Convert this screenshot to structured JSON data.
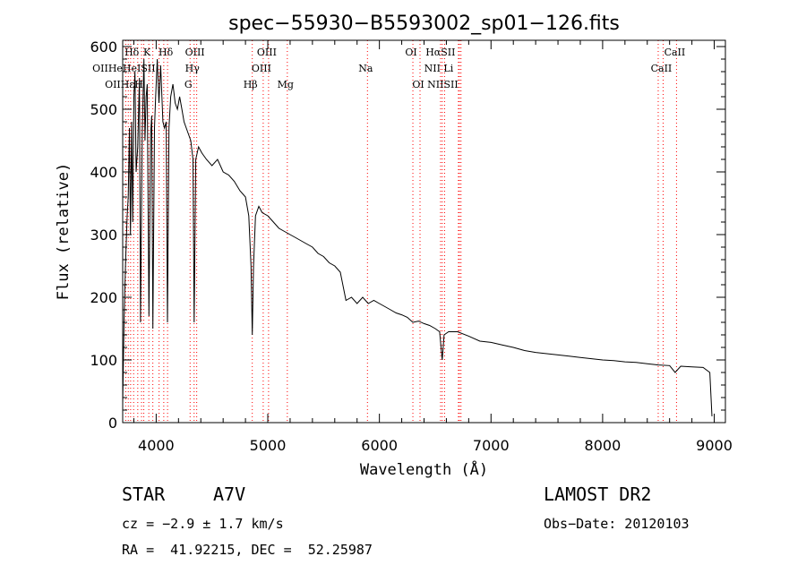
{
  "chart_data": {
    "type": "line",
    "title": "spec−55930−B5593002_sp01−126.fits",
    "xlabel": "Wavelength (Å)",
    "ylabel": "Flux (relative)",
    "xlim": [
      3700,
      9100
    ],
    "ylim": [
      0,
      610
    ],
    "x_ticks": [
      4000,
      5000,
      6000,
      7000,
      8000,
      9000
    ],
    "y_ticks": [
      0,
      100,
      200,
      300,
      400,
      500,
      600
    ],
    "grid": false,
    "series": [
      {
        "name": "spectrum",
        "color": "#000000",
        "points": [
          [
            3700,
            30
          ],
          [
            3712,
            160
          ],
          [
            3725,
            250
          ],
          [
            3740,
            330
          ],
          [
            3750,
            360
          ],
          [
            3760,
            470
          ],
          [
            3770,
            300
          ],
          [
            3780,
            480
          ],
          [
            3790,
            320
          ],
          [
            3800,
            520
          ],
          [
            3810,
            560
          ],
          [
            3820,
            400
          ],
          [
            3835,
            440
          ],
          [
            3850,
            550
          ],
          [
            3860,
            160
          ],
          [
            3875,
            460
          ],
          [
            3890,
            580
          ],
          [
            3900,
            450
          ],
          [
            3910,
            520
          ],
          [
            3920,
            540
          ],
          [
            3935,
            170
          ],
          [
            3950,
            460
          ],
          [
            3960,
            490
          ],
          [
            3970,
            150
          ],
          [
            3985,
            470
          ],
          [
            3995,
            520
          ],
          [
            4010,
            580
          ],
          [
            4025,
            510
          ],
          [
            4040,
            570
          ],
          [
            4060,
            480
          ],
          [
            4075,
            470
          ],
          [
            4090,
            480
          ],
          [
            4101,
            160
          ],
          [
            4115,
            470
          ],
          [
            4130,
            520
          ],
          [
            4150,
            540
          ],
          [
            4170,
            510
          ],
          [
            4190,
            500
          ],
          [
            4210,
            520
          ],
          [
            4230,
            500
          ],
          [
            4250,
            480
          ],
          [
            4270,
            470
          ],
          [
            4290,
            460
          ],
          [
            4310,
            450
          ],
          [
            4330,
            420
          ],
          [
            4340,
            160
          ],
          [
            4355,
            420
          ],
          [
            4380,
            440
          ],
          [
            4410,
            430
          ],
          [
            4450,
            420
          ],
          [
            4500,
            410
          ],
          [
            4550,
            420
          ],
          [
            4600,
            400
          ],
          [
            4650,
            395
          ],
          [
            4700,
            385
          ],
          [
            4750,
            370
          ],
          [
            4800,
            360
          ],
          [
            4830,
            330
          ],
          [
            4850,
            250
          ],
          [
            4861,
            140
          ],
          [
            4872,
            250
          ],
          [
            4890,
            330
          ],
          [
            4920,
            345
          ],
          [
            4950,
            335
          ],
          [
            5000,
            330
          ],
          [
            5050,
            320
          ],
          [
            5100,
            310
          ],
          [
            5150,
            305
          ],
          [
            5200,
            300
          ],
          [
            5250,
            295
          ],
          [
            5300,
            290
          ],
          [
            5350,
            285
          ],
          [
            5400,
            280
          ],
          [
            5450,
            270
          ],
          [
            5500,
            265
          ],
          [
            5550,
            255
          ],
          [
            5600,
            250
          ],
          [
            5650,
            240
          ],
          [
            5700,
            195
          ],
          [
            5750,
            200
          ],
          [
            5800,
            190
          ],
          [
            5850,
            200
          ],
          [
            5900,
            190
          ],
          [
            5950,
            195
          ],
          [
            6000,
            190
          ],
          [
            6050,
            185
          ],
          [
            6100,
            180
          ],
          [
            6150,
            175
          ],
          [
            6200,
            172
          ],
          [
            6250,
            168
          ],
          [
            6300,
            160
          ],
          [
            6350,
            162
          ],
          [
            6400,
            158
          ],
          [
            6450,
            155
          ],
          [
            6500,
            150
          ],
          [
            6540,
            145
          ],
          [
            6563,
            100
          ],
          [
            6580,
            140
          ],
          [
            6620,
            145
          ],
          [
            6700,
            145
          ],
          [
            6800,
            138
          ],
          [
            6900,
            130
          ],
          [
            7000,
            128
          ],
          [
            7100,
            124
          ],
          [
            7200,
            120
          ],
          [
            7300,
            115
          ],
          [
            7400,
            112
          ],
          [
            7500,
            110
          ],
          [
            7600,
            108
          ],
          [
            7700,
            106
          ],
          [
            7800,
            104
          ],
          [
            7900,
            102
          ],
          [
            8000,
            100
          ],
          [
            8100,
            99
          ],
          [
            8200,
            97
          ],
          [
            8300,
            96
          ],
          [
            8400,
            94
          ],
          [
            8500,
            92
          ],
          [
            8600,
            91
          ],
          [
            8650,
            80
          ],
          [
            8700,
            90
          ],
          [
            8800,
            89
          ],
          [
            8900,
            88
          ],
          [
            8960,
            80
          ],
          [
            8980,
            10
          ]
        ]
      }
    ],
    "lines": [
      {
        "label": "Hδ",
        "wavelength": 3798,
        "row": 1
      },
      {
        "label": "K",
        "wavelength": 3934,
        "row": 1
      },
      {
        "label": "Hδ",
        "wavelength": 4102,
        "row": 1
      },
      {
        "label": "OIII",
        "wavelength": 4363,
        "row": 1
      },
      {
        "label": "OIII",
        "wavelength": 5007,
        "row": 1
      },
      {
        "label": "OI",
        "wavelength": 6300,
        "row": 1
      },
      {
        "label": "HαSII",
        "wavelength": 6563,
        "row": 1
      },
      {
        "label": "CaII",
        "wavelength": 8662,
        "row": 1
      },
      {
        "label": "OIIHeHeISII",
        "wavelength": 3727,
        "row": 2
      },
      {
        "label": "Hγ",
        "wavelength": 4340,
        "row": 2
      },
      {
        "label": "OIII",
        "wavelength": 4959,
        "row": 2
      },
      {
        "label": "Na",
        "wavelength": 5893,
        "row": 2
      },
      {
        "label": "NII Li",
        "wavelength": 6548,
        "row": 2
      },
      {
        "label": "CaII",
        "wavelength": 8542,
        "row": 2
      },
      {
        "label": "OIIHεH",
        "wavelength": 3727,
        "row": 3
      },
      {
        "label": "G",
        "wavelength": 4304,
        "row": 3
      },
      {
        "label": "Hβ",
        "wavelength": 4861,
        "row": 3
      },
      {
        "label": "Mg",
        "wavelength": 5175,
        "row": 3
      },
      {
        "label": "OI",
        "wavelength": 6364,
        "row": 3
      },
      {
        "label": "NIISII",
        "wavelength": 6584,
        "row": 3
      }
    ],
    "line_markers": [
      3727,
      3750,
      3771,
      3798,
      3835,
      3869,
      3889,
      3934,
      3970,
      4026,
      4068,
      4102,
      4304,
      4340,
      4363,
      4861,
      4959,
      5007,
      5175,
      5893,
      6300,
      6364,
      6548,
      6563,
      6584,
      6708,
      6717,
      6731,
      8498,
      8542,
      8662
    ],
    "marker_color": "#ff0000"
  },
  "info": {
    "object_class": "STAR",
    "subclass": "A7V",
    "survey": "LAMOST DR2",
    "redshift_text": "cz = −2.9 ± 1.7 km/s",
    "obs_date": "Obs−Date: 20120103",
    "coords": "RA =  41.92215, DEC =  52.25987"
  }
}
